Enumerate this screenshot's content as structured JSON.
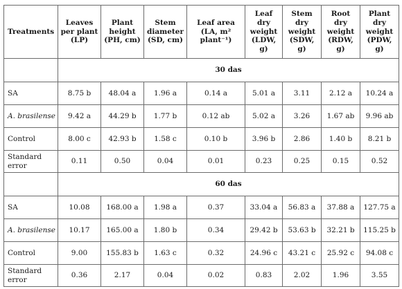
{
  "table": {
    "headers": {
      "treatments": "Treatments",
      "lp": [
        "Leaves",
        "per plant",
        "(LP)"
      ],
      "ph": [
        "Plant",
        "height",
        "(PH, cm)"
      ],
      "sd": [
        "Stem",
        "diameter",
        "(SD, cm)"
      ],
      "la": [
        "Leaf area",
        "(LA, m² plant⁻¹)"
      ],
      "ldw": [
        "Leaf dry",
        "weight",
        "(LDW, g)"
      ],
      "sdw": [
        "Stem dry",
        "weight",
        "(SDW, g)"
      ],
      "rdw": [
        "Root dry",
        "weight",
        "(RDW, g)"
      ],
      "pdw": [
        "Plant",
        "dry",
        "weight",
        "(PDW, g)"
      ]
    },
    "sections": [
      {
        "title": "30 das",
        "rows": [
          {
            "treatment": "SA",
            "italic": false,
            "values": [
              "8.75 b",
              "48.04 a",
              "1.96 a",
              "0.14 a",
              "5.01 a",
              "3.11",
              "2.12 a",
              "10.24 a"
            ]
          },
          {
            "treatment": "A. brasilense",
            "italic": true,
            "values": [
              "9.42 a",
              "44.29 b",
              "1.77 b",
              "0.12 ab",
              "5.02 a",
              "3.26",
              "1.67 ab",
              "9.96 ab"
            ]
          },
          {
            "treatment": "Control",
            "italic": false,
            "values": [
              "8.00 c",
              "42.93 b",
              "1.58 c",
              "0.10 b",
              "3.96 b",
              "2.86",
              "1.40 b",
              "8.21 b"
            ]
          },
          {
            "treatment": [
              "Standard",
              "error"
            ],
            "italic": false,
            "values": [
              "0.11",
              "0.50",
              "0.04",
              "0.01",
              "0.23",
              "0.25",
              "0.15",
              "0.52"
            ]
          }
        ]
      },
      {
        "title": "60 das",
        "rows": [
          {
            "treatment": "SA",
            "italic": false,
            "values": [
              "10.08",
              "168.00 a",
              "1.98 a",
              "0.37",
              "33.04 a",
              "56.83 a",
              "37.88 a",
              "127.75 a"
            ]
          },
          {
            "treatment": "A. brasilense",
            "italic": true,
            "values": [
              "10.17",
              "165.00 a",
              "1.80 b",
              "0.34",
              "29.42 b",
              "53.63 b",
              "32.21 b",
              "115.25 b"
            ]
          },
          {
            "treatment": "Control",
            "italic": false,
            "values": [
              "9.00",
              "155.83 b",
              "1.63 c",
              "0.32",
              "24.96 c",
              "43.21 c",
              "25.92 c",
              "94.08 c"
            ]
          },
          {
            "treatment": [
              "Standard",
              "error"
            ],
            "italic": false,
            "values": [
              "0.36",
              "2.17",
              "0.04",
              "0.02",
              "0.83",
              "2.02",
              "1.96",
              "3.55"
            ]
          }
        ]
      }
    ]
  }
}
